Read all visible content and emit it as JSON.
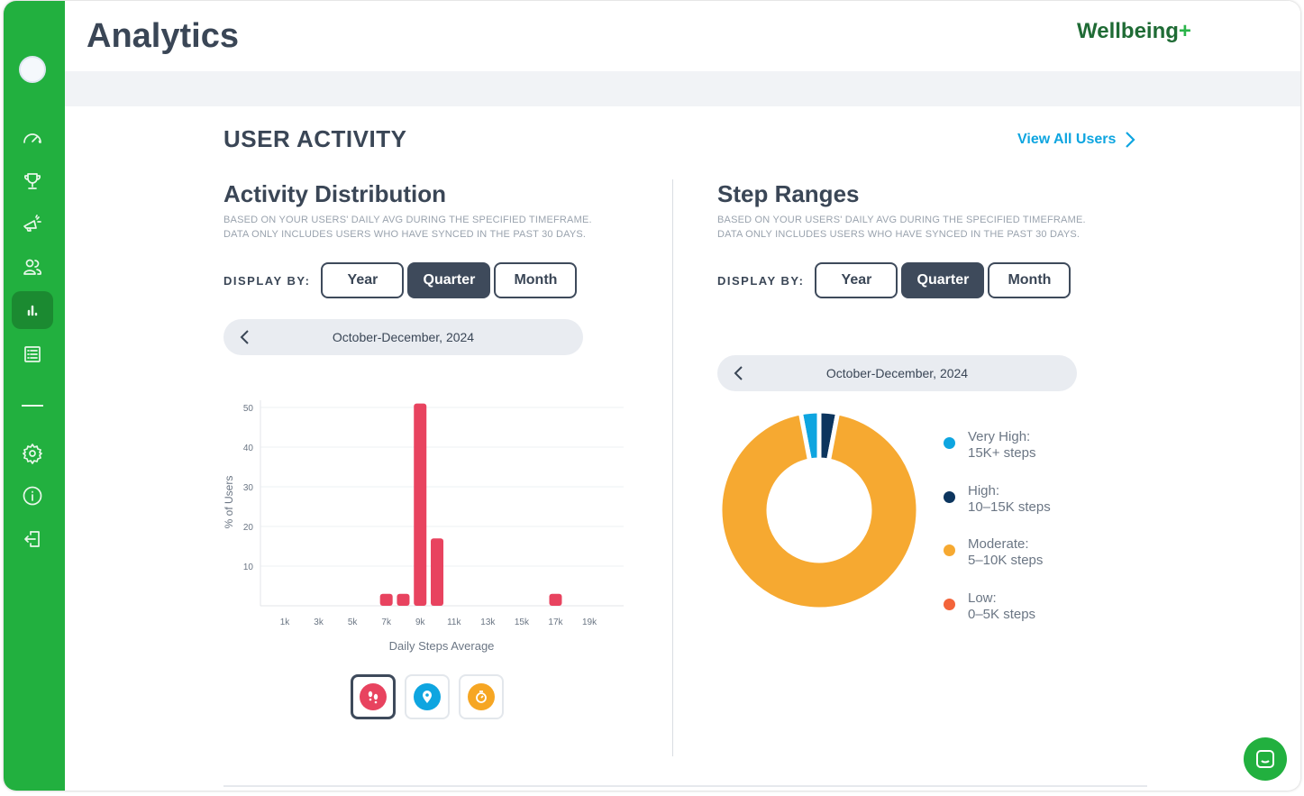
{
  "header": {
    "title": "Analytics",
    "logo": "Wellbeing+"
  },
  "sidebar": {
    "items": [
      {
        "icon": "dashboard-gauge-icon"
      },
      {
        "icon": "trophy-icon"
      },
      {
        "icon": "megaphone-icon"
      },
      {
        "icon": "users-icon"
      },
      {
        "icon": "bar-chart-icon",
        "active": true
      },
      {
        "icon": "list-icon"
      },
      {
        "icon": "settings-gear-icon"
      },
      {
        "icon": "info-icon"
      },
      {
        "icon": "logout-icon"
      }
    ]
  },
  "section": {
    "title": "USER ACTIVITY",
    "view_all": "View All Users"
  },
  "activity": {
    "title": "Activity Distribution",
    "subtitle1": "Based on your users' daily avg during the specified timeframe.",
    "subtitle2": "Data only includes users who have synced in the past 30 days.",
    "display_by": "DISPLAY BY:",
    "buttons": [
      "Year",
      "Quarter",
      "Month"
    ],
    "selected": "Quarter",
    "date": "October-December, 2024",
    "metrics": [
      {
        "icon": "footsteps-icon",
        "color": "#e8435f",
        "selected": true
      },
      {
        "icon": "location-pin-icon",
        "color": "#0ea5e0"
      },
      {
        "icon": "stopwatch-icon",
        "color": "#f6a623"
      }
    ]
  },
  "steps": {
    "title": "Step Ranges",
    "subtitle1": "Based on your users' daily avg during the specified timeframe.",
    "subtitle2": "Data only includes users who have synced in the past 30 days.",
    "display_by": "DISPLAY BY:",
    "buttons": [
      "Year",
      "Quarter",
      "Month"
    ],
    "selected": "Quarter",
    "date": "October-December, 2024"
  },
  "chart_data": [
    {
      "type": "bar",
      "xlabel": "Daily Steps Average",
      "ylabel": "% of Users",
      "x_ticks": [
        "1k",
        "3k",
        "5k",
        "7k",
        "9k",
        "11k",
        "13k",
        "15k",
        "17k",
        "19k"
      ],
      "y_ticks": [
        10,
        20,
        30,
        40,
        50
      ],
      "ylim": [
        0,
        50
      ],
      "grid": true,
      "color": "#e8435f",
      "x": [
        7,
        8,
        9,
        10,
        17
      ],
      "values": [
        3,
        3,
        51,
        17,
        3
      ]
    },
    {
      "type": "pie",
      "donut": true,
      "legend_placement": "right",
      "slices": [
        {
          "name": "Very High:",
          "detail": "15K+ steps",
          "value": 3,
          "color": "#0ea5e0"
        },
        {
          "name": "High:",
          "detail": "10–15K steps",
          "value": 3,
          "color": "#0c355e"
        },
        {
          "name": "Moderate:",
          "detail": "5–10K steps",
          "value": 94,
          "color": "#f6a931"
        },
        {
          "name": "Low:",
          "detail": "0–5K steps",
          "value": 0,
          "color": "#f3643a"
        }
      ]
    }
  ]
}
